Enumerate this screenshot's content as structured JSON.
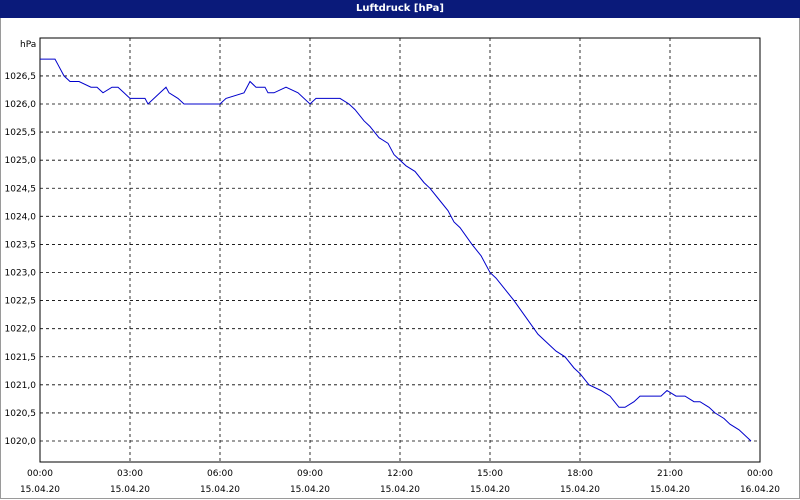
{
  "window": {
    "title": "Luftdruck [hPa]"
  },
  "chart_data": {
    "type": "line",
    "title": "Luftdruck [hPa]",
    "ylabel": "hPa",
    "xlabel": "",
    "ylim": [
      1019.8,
      1026.9
    ],
    "yticks": [
      "1026,5",
      "1026,0",
      "1025,5",
      "1025,0",
      "1024,5",
      "1024,0",
      "1023,5",
      "1023,0",
      "1022,5",
      "1022,0",
      "1021,5",
      "1021,0",
      "1020,5",
      "1020,0"
    ],
    "ytick_values": [
      1026.5,
      1026.0,
      1025.5,
      1025.0,
      1024.5,
      1024.0,
      1023.5,
      1023.0,
      1022.5,
      1022.0,
      1021.5,
      1021.0,
      1020.5,
      1020.0
    ],
    "xticks": [
      {
        "time": "00:00",
        "date": "15.04.20",
        "hour": 0
      },
      {
        "time": "03:00",
        "date": "15.04.20",
        "hour": 3
      },
      {
        "time": "06:00",
        "date": "15.04.20",
        "hour": 6
      },
      {
        "time": "09:00",
        "date": "15.04.20",
        "hour": 9
      },
      {
        "time": "12:00",
        "date": "15.04.20",
        "hour": 12
      },
      {
        "time": "15:00",
        "date": "15.04.20",
        "hour": 15
      },
      {
        "time": "18:00",
        "date": "15.04.20",
        "hour": 18
      },
      {
        "time": "21:00",
        "date": "15.04.20",
        "hour": 21
      },
      {
        "time": "00:00",
        "date": "16.04.20",
        "hour": 24
      }
    ],
    "xlim": [
      0,
      24
    ],
    "grid": true,
    "series": [
      {
        "color": "#0000cc",
        "x": [
          0,
          0.5,
          0.6,
          0.8,
          1.0,
          1.3,
          1.7,
          1.9,
          2.1,
          2.4,
          2.6,
          2.8,
          3.0,
          3.5,
          3.6,
          3.8,
          4.0,
          4.2,
          4.3,
          4.6,
          4.8,
          5.0,
          5.5,
          6.0,
          6.2,
          6.8,
          7.0,
          7.2,
          7.5,
          7.6,
          7.8,
          8.2,
          8.6,
          9.0,
          9.2,
          10.0,
          10.3,
          10.5,
          10.8,
          11.0,
          11.3,
          11.6,
          11.8,
          12.0,
          12.2,
          12.5,
          12.8,
          13.0,
          13.3,
          13.6,
          13.8,
          14.0,
          14.4,
          14.7,
          15.0,
          15.2,
          15.5,
          15.8,
          16.2,
          16.6,
          17.0,
          17.2,
          17.5,
          17.8,
          18.0,
          18.3,
          18.7,
          19.0,
          19.3,
          19.5,
          19.8,
          20.0,
          20.4,
          20.7,
          20.9,
          21.2,
          21.5,
          21.8,
          22.0,
          22.3,
          22.5,
          22.8,
          23.0,
          23.3,
          23.7
        ],
        "y": [
          1026.8,
          1026.8,
          1026.7,
          1026.5,
          1026.4,
          1026.4,
          1026.3,
          1026.3,
          1026.2,
          1026.3,
          1026.3,
          1026.2,
          1026.1,
          1026.1,
          1026.0,
          1026.1,
          1026.2,
          1026.3,
          1026.2,
          1026.1,
          1026.0,
          1026.0,
          1026.0,
          1026.0,
          1026.1,
          1026.2,
          1026.4,
          1026.3,
          1026.3,
          1026.2,
          1026.2,
          1026.3,
          1026.2,
          1026.0,
          1026.1,
          1026.1,
          1026.0,
          1025.9,
          1025.7,
          1025.6,
          1025.4,
          1025.3,
          1025.1,
          1025.0,
          1024.9,
          1024.8,
          1024.6,
          1024.5,
          1024.3,
          1024.1,
          1023.9,
          1023.8,
          1023.5,
          1023.3,
          1023.0,
          1022.9,
          1022.7,
          1022.5,
          1022.2,
          1021.9,
          1021.7,
          1021.6,
          1021.5,
          1021.3,
          1021.2,
          1021.0,
          1020.9,
          1020.8,
          1020.6,
          1020.6,
          1020.7,
          1020.8,
          1020.8,
          1020.8,
          1020.9,
          1020.8,
          1020.8,
          1020.7,
          1020.7,
          1020.6,
          1020.5,
          1020.4,
          1020.3,
          1020.2,
          1020.0
        ]
      }
    ]
  }
}
